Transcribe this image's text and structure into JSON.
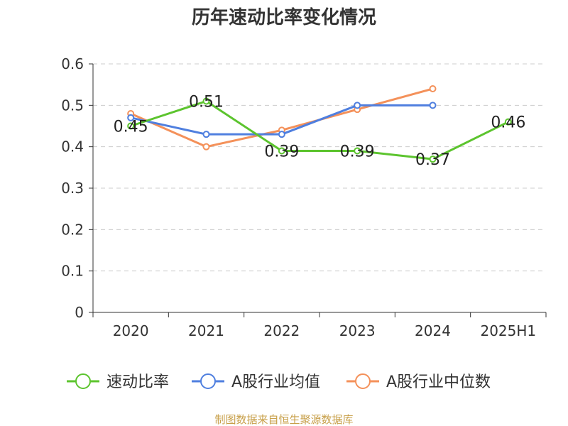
{
  "chart_data": {
    "type": "line",
    "title": "历年速动比率变化情况",
    "categories": [
      "2020",
      "2021",
      "2022",
      "2023",
      "2024",
      "2025H1"
    ],
    "ylim": [
      0,
      0.6
    ],
    "yticks": [
      "0",
      "0.1",
      "0.2",
      "0.3",
      "0.4",
      "0.5",
      "0.6"
    ],
    "grid": true,
    "legend_position": "bottom",
    "series": [
      {
        "name": "速动比率",
        "color": "#5cc42e",
        "values": [
          0.45,
          0.51,
          0.39,
          0.39,
          0.37,
          0.46
        ],
        "labels": [
          "0.45",
          "0.51",
          "0.39",
          "0.39",
          "0.37",
          "0.46"
        ]
      },
      {
        "name": "A股行业均值",
        "color": "#4f7fdf",
        "values": [
          0.47,
          0.43,
          0.43,
          0.5,
          0.5,
          null
        ]
      },
      {
        "name": "A股行业中位数",
        "color": "#f4915a",
        "values": [
          0.48,
          0.4,
          0.44,
          0.49,
          0.54,
          null
        ]
      }
    ]
  },
  "source": "制图数据来自恒生聚源数据库"
}
